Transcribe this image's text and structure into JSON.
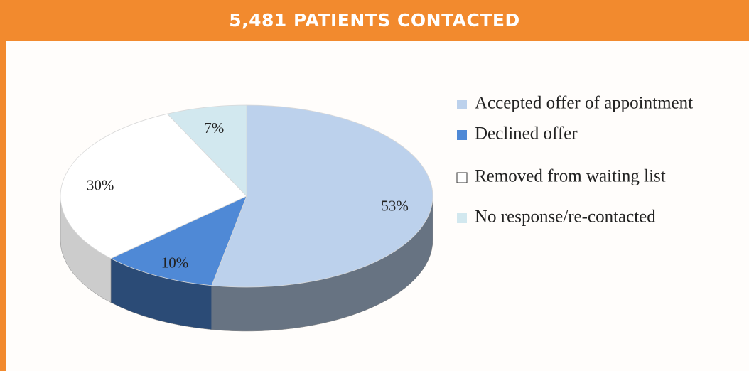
{
  "chart_data": {
    "type": "pie",
    "title": "5,481 PATIENTS CONTACTED",
    "categories": [
      "Accepted offer of appointment",
      "Declined offer",
      "Removed from waiting list",
      "No response/re-contacted"
    ],
    "values": [
      53,
      10,
      30,
      7
    ],
    "value_labels": [
      "53%",
      "10%",
      "30%",
      "7%"
    ],
    "colors": [
      "#bcd1ec",
      "#4f89d6",
      "#ffffff",
      "#d2e8ef"
    ],
    "legend": "right"
  }
}
